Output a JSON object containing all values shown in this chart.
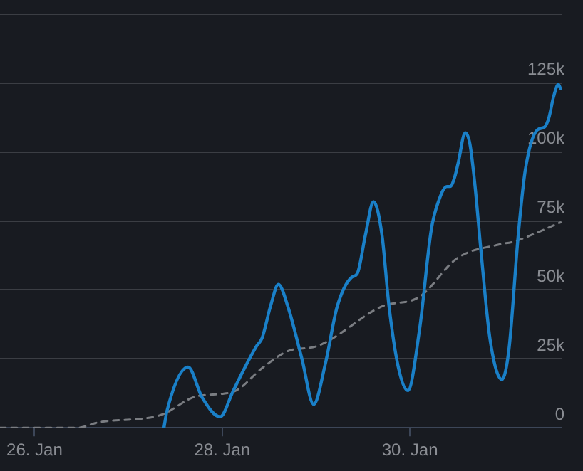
{
  "chart_data": {
    "type": "line",
    "series": [
      {
        "color": "#1a80c8",
        "line_style": "solid",
        "x": [
          "--01-27T09:06",
          "--01-27T09:51",
          "--01-27T15:16",
          "--01-27T18:52",
          "--01-27T23:28",
          "--01-28T02:42",
          "--01-28T05:07",
          "--01-28T08:44",
          "--01-28T10:11",
          "--01-28T12:20",
          "--01-28T14:22",
          "--01-28T16:47",
          "--01-28T20:23",
          "--01-28T23:23",
          "--01-29T02:25",
          "--01-29T05:25",
          "--01-29T09:01",
          "--01-29T10:34",
          "--01-29T12:38",
          "--01-29T14:41",
          "--01-29T16:51",
          "--01-29T18:40",
          "--01-29T21:02",
          "--01-29T23:28",
          "--01-30T02:27",
          "--01-30T05:29",
          "--01-30T07:17",
          "--01-30T09:28",
          "--01-30T10:17",
          "--01-30T11:28",
          "--01-30T12:20",
          "--01-30T14:09",
          "--01-30T15:20",
          "--01-30T16:40",
          "--01-30T18:07",
          "--01-30T20:30",
          "--01-30T23:32",
          "--01-31T01:20",
          "--01-31T03:43",
          "--01-31T05:31",
          "--01-31T08:33",
          "--01-31T10:22",
          "--01-31T11:33",
          "--01-31T12:44",
          "--01-31T13:58",
          "--01-31T14:32"
        ],
        "values": [
          0,
          6000,
          22000,
          11000,
          4000,
          13000,
          20000,
          29500,
          32500,
          44000,
          52000,
          44000,
          25000,
          8500,
          23500,
          44000,
          54500,
          56000,
          70000,
          82000,
          70000,
          44000,
          22000,
          13500,
          35500,
          72000,
          82000,
          87500,
          87500,
          91000,
          96000,
          107000,
          103000,
          87500,
          65000,
          32000,
          17500,
          28500,
          70000,
          93500,
          108000,
          109000,
          112500,
          120000,
          124500,
          123000
        ]
      },
      {
        "color": "#7a7d82",
        "line_style": "dashed",
        "x": [
          "--01-25T15:10",
          "--01-26T11:00",
          "--01-26T16:25",
          "--01-27T08:03",
          "--01-27T17:41",
          "--01-28T02:42",
          "--01-28T10:32",
          "--01-28T17:08",
          "--01-29T00:00",
          "--01-29T16:51",
          "--01-30T02:27",
          "--01-30T12:05",
          "--01-30T22:54",
          "--01-31T02:30",
          "--01-31T14:32"
        ],
        "values": [
          0,
          0,
          2000,
          4500,
          11500,
          13000,
          22000,
          28000,
          29500,
          44000,
          47500,
          61500,
          66500,
          67500,
          74500
        ]
      }
    ],
    "xlim": [
      "--01-25T15:10",
      "--01-31T14:48"
    ],
    "xticks": [
      {
        "value": "--01-26",
        "label": "26. Jan"
      },
      {
        "value": "--01-28",
        "label": "28. Jan"
      },
      {
        "value": "--01-30",
        "label": "30. Jan"
      }
    ],
    "ylim": [
      0,
      150000
    ],
    "yticks": [
      {
        "value": 0,
        "label": "0"
      },
      {
        "value": 25000,
        "label": "25k"
      },
      {
        "value": 50000,
        "label": "50k"
      },
      {
        "value": 75000,
        "label": "75k"
      },
      {
        "value": 100000,
        "label": "100k"
      },
      {
        "value": 125000,
        "label": "125k"
      },
      {
        "value": 150000,
        "label": null
      }
    ],
    "grid": "y",
    "legend": false,
    "marker": "none"
  }
}
